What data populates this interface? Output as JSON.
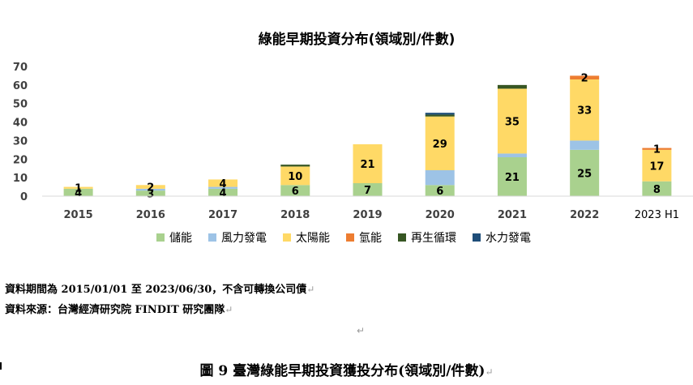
{
  "chart_data": {
    "type": "bar",
    "stacked": true,
    "title": "綠能早期投資分布(領域別/件數)",
    "categories": [
      "2015",
      "2016",
      "2017",
      "2018",
      "2019",
      "2020",
      "2021",
      "2022",
      "2023 H1"
    ],
    "ylim": [
      0,
      70
    ],
    "yticks": [
      0,
      10,
      20,
      30,
      40,
      50,
      60,
      70
    ],
    "grid": false,
    "legend_position": "bottom",
    "series": [
      {
        "name": "儲能",
        "color": "#a9d18e",
        "values": [
          4,
          3,
          4,
          6,
          7,
          6,
          21,
          25,
          8
        ]
      },
      {
        "name": "風力發電",
        "color": "#9dc3e6",
        "values": [
          0,
          1,
          1,
          0,
          0,
          8,
          2,
          5,
          0
        ]
      },
      {
        "name": "太陽能",
        "color": "#ffd966",
        "values": [
          1,
          2,
          4,
          10,
          21,
          29,
          35,
          33,
          17
        ]
      },
      {
        "name": "氫能",
        "color": "#ed7d31",
        "values": [
          0,
          0,
          0,
          0,
          0,
          0,
          0,
          2,
          1
        ]
      },
      {
        "name": "再生循環",
        "color": "#375623",
        "values": [
          0,
          0,
          0,
          1,
          0,
          1,
          2,
          0,
          0
        ]
      },
      {
        "name": "水力發電",
        "color": "#1f4e79",
        "values": [
          0,
          0,
          0,
          0,
          0,
          1,
          0,
          0,
          0
        ]
      }
    ],
    "data_labels": [
      {
        "series": 0,
        "category": 0,
        "text": "4"
      },
      {
        "series": 2,
        "category": 0,
        "text": "1"
      },
      {
        "series": 0,
        "category": 1,
        "text": "3"
      },
      {
        "series": 2,
        "category": 1,
        "text": "2"
      },
      {
        "series": 0,
        "category": 2,
        "text": "4"
      },
      {
        "series": 2,
        "category": 2,
        "text": "4"
      },
      {
        "series": 0,
        "category": 3,
        "text": "6"
      },
      {
        "series": 2,
        "category": 3,
        "text": "10"
      },
      {
        "series": 0,
        "category": 4,
        "text": "7"
      },
      {
        "series": 2,
        "category": 4,
        "text": "21"
      },
      {
        "series": 0,
        "category": 5,
        "text": "6"
      },
      {
        "series": 2,
        "category": 5,
        "text": "29"
      },
      {
        "series": 0,
        "category": 6,
        "text": "21"
      },
      {
        "series": 2,
        "category": 6,
        "text": "35"
      },
      {
        "series": 0,
        "category": 7,
        "text": "25"
      },
      {
        "series": 2,
        "category": 7,
        "text": "33"
      },
      {
        "series": 3,
        "category": 7,
        "text": "2"
      },
      {
        "series": 0,
        "category": 8,
        "text": "8"
      },
      {
        "series": 2,
        "category": 8,
        "text": "17"
      },
      {
        "series": 3,
        "category": 8,
        "text": "1"
      }
    ]
  },
  "notes": {
    "period": "資料期間為 2015/01/01 至 2023/06/30，不含可轉換公司債",
    "source": "資料來源：台灣經濟研究院 FINDIT 研究團隊",
    "para_mark": "↵"
  },
  "caption": "圖 9  臺灣綠能早期投資獲投分布(領域別/件數)",
  "caption_mark": "↵"
}
